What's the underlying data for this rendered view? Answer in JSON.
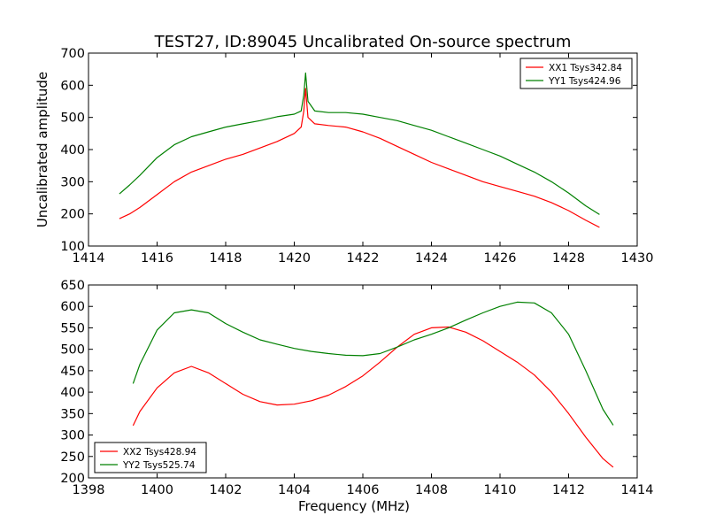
{
  "title": "TEST27, ID:89045 Uncalibrated On-source spectrum",
  "colors": {
    "red": "#ff0000",
    "green": "#008000"
  },
  "chart_data": [
    {
      "type": "line",
      "xlim": [
        1414,
        1430
      ],
      "ylim": [
        100,
        700
      ],
      "xticks": [
        1414,
        1416,
        1418,
        1420,
        1422,
        1424,
        1426,
        1428,
        1430
      ],
      "yticks": [
        100,
        200,
        300,
        400,
        500,
        600,
        700
      ],
      "xlabel": "",
      "ylabel": "Uncalibrated amplitude",
      "legend_position": "upper right",
      "grid": false,
      "series": [
        {
          "name": "XX1 Tsys342.84",
          "color": "#ff0000",
          "x": [
            1414.9,
            1415.2,
            1415.5,
            1416.0,
            1416.5,
            1417.0,
            1417.5,
            1418.0,
            1418.5,
            1419.0,
            1419.5,
            1420.0,
            1420.2,
            1420.28,
            1420.33,
            1420.4,
            1420.6,
            1421.0,
            1421.5,
            1422.0,
            1422.5,
            1423.0,
            1423.5,
            1424.0,
            1424.5,
            1425.0,
            1425.5,
            1426.0,
            1426.5,
            1427.0,
            1427.5,
            1428.0,
            1428.5,
            1428.9
          ],
          "y": [
            185,
            200,
            220,
            260,
            300,
            330,
            350,
            370,
            385,
            405,
            425,
            450,
            470,
            520,
            590,
            500,
            480,
            475,
            470,
            455,
            435,
            410,
            385,
            360,
            340,
            320,
            300,
            285,
            270,
            255,
            235,
            210,
            180,
            158
          ]
        },
        {
          "name": "YY1 Tsys424.96",
          "color": "#008000",
          "x": [
            1414.9,
            1415.2,
            1415.5,
            1416.0,
            1416.5,
            1417.0,
            1417.5,
            1418.0,
            1418.5,
            1419.0,
            1419.5,
            1420.0,
            1420.2,
            1420.28,
            1420.33,
            1420.4,
            1420.6,
            1421.0,
            1421.5,
            1422.0,
            1422.5,
            1423.0,
            1423.5,
            1424.0,
            1424.5,
            1425.0,
            1425.5,
            1426.0,
            1426.5,
            1427.0,
            1427.5,
            1428.0,
            1428.5,
            1428.9
          ],
          "y": [
            262,
            290,
            320,
            375,
            415,
            440,
            455,
            470,
            480,
            490,
            502,
            510,
            520,
            570,
            638,
            550,
            520,
            515,
            515,
            510,
            500,
            490,
            475,
            460,
            440,
            420,
            400,
            380,
            355,
            330,
            300,
            265,
            225,
            198
          ]
        }
      ]
    },
    {
      "type": "line",
      "xlim": [
        1398,
        1414
      ],
      "ylim": [
        200,
        650
      ],
      "xticks": [
        1398,
        1400,
        1402,
        1404,
        1406,
        1408,
        1410,
        1412,
        1414
      ],
      "yticks": [
        200,
        250,
        300,
        350,
        400,
        450,
        500,
        550,
        600,
        650
      ],
      "xlabel": "Frequency (MHz)",
      "ylabel": "",
      "legend_position": "lower left",
      "grid": false,
      "series": [
        {
          "name": "XX2 Tsys428.94",
          "color": "#ff0000",
          "x": [
            1399.3,
            1399.5,
            1400.0,
            1400.5,
            1401.0,
            1401.5,
            1402.0,
            1402.5,
            1403.0,
            1403.5,
            1404.0,
            1404.5,
            1405.0,
            1405.5,
            1406.0,
            1406.5,
            1407.0,
            1407.5,
            1408.0,
            1408.5,
            1409.0,
            1409.5,
            1410.0,
            1410.5,
            1411.0,
            1411.5,
            1412.0,
            1412.5,
            1413.0,
            1413.3
          ],
          "y": [
            322,
            355,
            410,
            445,
            460,
            445,
            420,
            395,
            378,
            370,
            372,
            380,
            393,
            413,
            438,
            470,
            505,
            535,
            550,
            552,
            540,
            520,
            495,
            470,
            440,
            400,
            350,
            295,
            245,
            225
          ]
        },
        {
          "name": "YY2 Tsys525.74",
          "color": "#008000",
          "x": [
            1399.3,
            1399.5,
            1400.0,
            1400.5,
            1401.0,
            1401.5,
            1402.0,
            1402.5,
            1403.0,
            1403.5,
            1404.0,
            1404.5,
            1405.0,
            1405.5,
            1406.0,
            1406.5,
            1407.0,
            1407.5,
            1408.0,
            1408.5,
            1409.0,
            1409.5,
            1410.0,
            1410.5,
            1411.0,
            1411.5,
            1412.0,
            1412.5,
            1413.0,
            1413.3
          ],
          "y": [
            420,
            465,
            545,
            585,
            592,
            585,
            560,
            540,
            522,
            512,
            502,
            495,
            490,
            486,
            485,
            490,
            505,
            522,
            535,
            550,
            568,
            585,
            600,
            610,
            608,
            585,
            535,
            450,
            360,
            323
          ]
        }
      ]
    }
  ]
}
